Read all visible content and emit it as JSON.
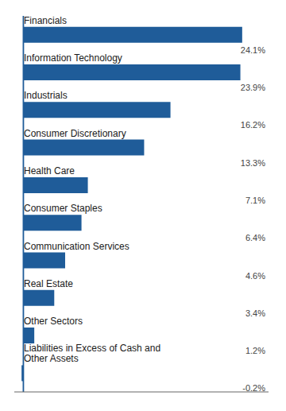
{
  "chart_data": {
    "type": "bar",
    "orientation": "horizontal",
    "categories": [
      "Financials",
      "Information Technology",
      "Industrials",
      "Consumer Discretionary",
      "Health Care",
      "Consumer Staples",
      "Communication Services",
      "Real Estate",
      "Other Sectors",
      "Liabilities in Excess of Cash and\nOther Assets"
    ],
    "values": [
      24.1,
      23.9,
      16.2,
      13.3,
      7.1,
      6.4,
      4.6,
      3.4,
      1.2,
      -0.2
    ],
    "value_labels": [
      "24.1%",
      "23.9%",
      "16.2%",
      "13.3%",
      "7.1%",
      "6.4%",
      "4.6%",
      "3.4%",
      "1.2%",
      "-0.2%"
    ],
    "data_labels": true,
    "color": "#1F5C99",
    "xlim": [
      -1,
      27
    ],
    "tick_labels": false,
    "grid": false
  }
}
